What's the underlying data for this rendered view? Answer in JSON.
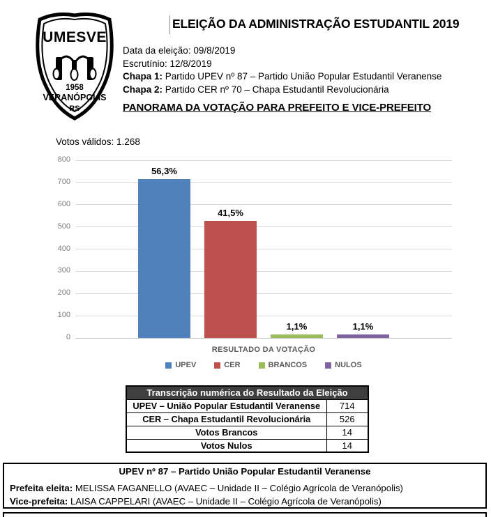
{
  "logo": {
    "org": "UMESVE",
    "year": "1958",
    "city": "VERANÓPOLIS",
    "state": "RS"
  },
  "header": {
    "title": "ELEIÇÃO DA ADMINISTRAÇÃO ESTUDANTIL 2019",
    "info": [
      {
        "bold": "",
        "rest": "Data da eleição: 09/8/2019"
      },
      {
        "bold": "",
        "rest": "Escrutínio: 12/8/2019"
      },
      {
        "bold": "Chapa 1:",
        "rest": " Partido UPEV nº 87 – Partido União Popular Estudantil Veranense"
      },
      {
        "bold": "Chapa 2:",
        "rest": " Partido CER nº 70 – Chapa Estudantil Revolucionária"
      }
    ],
    "section_title": "PANORAMA DA VOTAÇÃO PARA PREFEITO E VICE-PREFEITO"
  },
  "chart_data": {
    "type": "bar",
    "title": "",
    "note": "Votos válidos: 1.268",
    "categories": [
      "UPEV",
      "CER",
      "BRANCOS",
      "NULOS"
    ],
    "values": [
      714,
      526,
      14,
      14
    ],
    "bar_labels": [
      "56,3%",
      "41,5%",
      "1,1%",
      "1,1%"
    ],
    "colors": [
      "#4F81BD",
      "#C0504D",
      "#9BBB59",
      "#8064A2"
    ],
    "xlabel": "RESULTADO DA VOTAÇÃO",
    "ylabel": "",
    "ylim": [
      0,
      800
    ],
    "yticks": [
      0,
      100,
      200,
      300,
      400,
      500,
      600,
      700,
      800
    ],
    "grid": true,
    "legend": [
      "UPEV",
      "CER",
      "BRANCOS",
      "NULOS"
    ],
    "legend_position": "bottom"
  },
  "table": {
    "title": "Transcrição numérica do Resultado da Eleição",
    "rows": [
      {
        "label": "UPEV – União Popular Estudantil Veranense",
        "value": "714"
      },
      {
        "label": "CER – Chapa Estudantil Revolucionária",
        "value": "526"
      },
      {
        "label": "Votos Brancos",
        "value": "14"
      },
      {
        "label": "Votos Nulos",
        "value": "14"
      }
    ]
  },
  "footer": {
    "title": "UPEV nº 87 – Partido União Popular Estudantil Veranense",
    "lines": [
      {
        "bold": "Prefeita eleita:",
        "rest": " MELISSA FAGANELLO (AVAEC – Unidade II – Colégio Agrícola de Veranópolis)"
      },
      {
        "bold": "Vice-prefeita:",
        "rest": " LAISA CAPPELARI (AVAEC – Unidade II – Colégio Agrícola de Veranópolis)"
      }
    ]
  }
}
